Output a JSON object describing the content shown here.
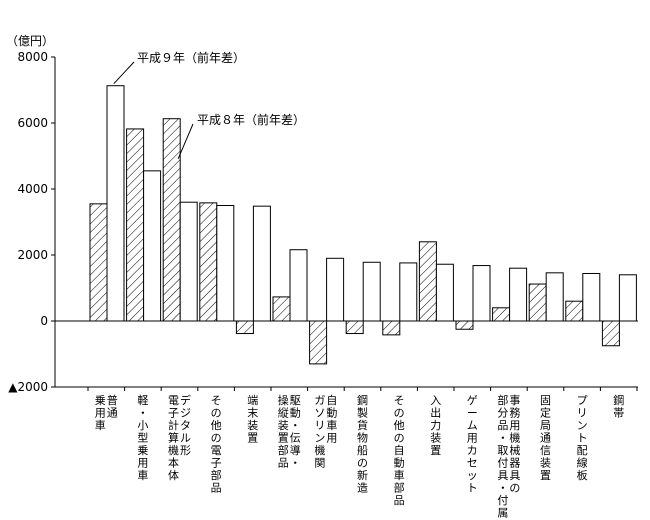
{
  "chart_data": {
    "type": "bar",
    "unit_label": "（億円）",
    "ylim": [
      -2000,
      8000
    ],
    "yticks": [
      8000,
      6000,
      4000,
      2000,
      0,
      -2000
    ],
    "ytick_labels": [
      "8000",
      "6000",
      "4000",
      "2000",
      "0",
      "▲2000"
    ],
    "grid": false,
    "categories": [
      [
        "普通",
        "乗用車"
      ],
      [
        "軽・小型乗用車"
      ],
      [
        "デジタル形",
        "電子計算機本体"
      ],
      [
        "その他の電子部品"
      ],
      [
        "端末装置"
      ],
      [
        "駆動・伝導・",
        "操縦装置部品"
      ],
      [
        "自動車用",
        "ガソリン機関"
      ],
      [
        "鋼製貨物船の新造"
      ],
      [
        "その他の自動車部品"
      ],
      [
        "入出力装置"
      ],
      [
        "ゲーム用カセット"
      ],
      [
        "事務用機械器具の",
        "部分品・取付具・付属品"
      ],
      [
        "固定局通信装置"
      ],
      [
        "プリント配線板"
      ],
      [
        "鋼帯"
      ]
    ],
    "series": [
      {
        "name": "平成８年（前年差）",
        "style": "hatched",
        "values": [
          3550,
          5820,
          6130,
          3580,
          -380,
          730,
          -1300,
          -380,
          -420,
          2400,
          -250,
          400,
          1120,
          600,
          -750
        ]
      },
      {
        "name": "平成９年（前年差）",
        "style": "white",
        "values": [
          7130,
          4550,
          3600,
          3500,
          3480,
          2160,
          1900,
          1780,
          1760,
          1720,
          1680,
          1600,
          1460,
          1440,
          1400
        ]
      }
    ],
    "annotations": [
      {
        "text": "平成９年（前年差）",
        "series": 1,
        "category_index": 0
      },
      {
        "text": "平成８年（前年差）",
        "series": 0,
        "category_index": 2
      }
    ],
    "colors": {
      "bar_stroke": "#000000",
      "bar_fill": "#ffffff",
      "hatch": "#000000"
    }
  }
}
